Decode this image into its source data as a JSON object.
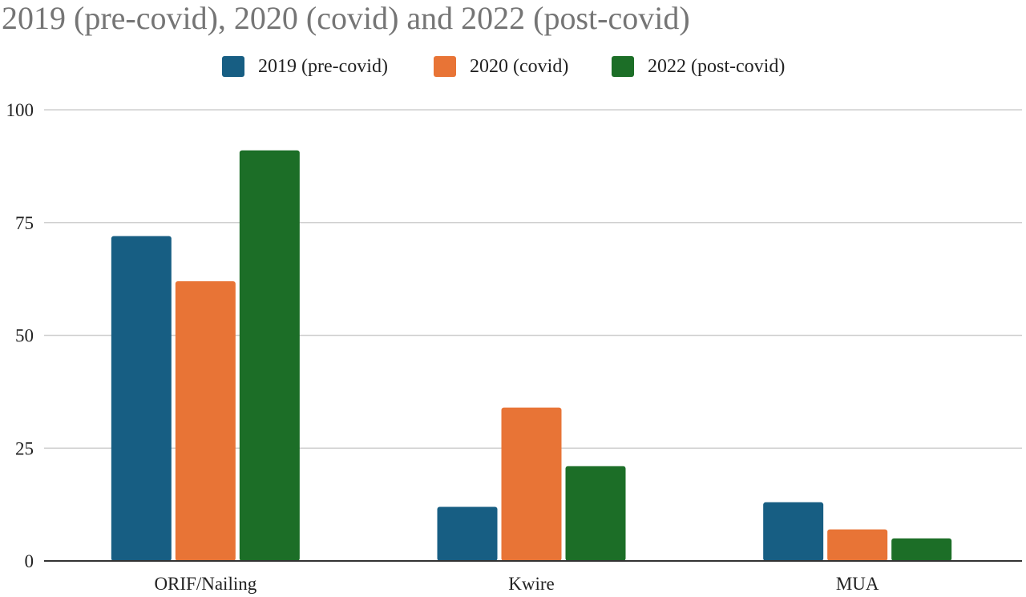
{
  "chart_data": {
    "type": "bar",
    "title": "2019 (pre-covid), 2020 (covid) and 2022 (post-covid)",
    "categories": [
      "ORIF/Nailing",
      "Kwire",
      "MUA"
    ],
    "series": [
      {
        "name": "2019 (pre-covid)",
        "values": [
          72,
          12,
          13
        ],
        "color": "#175E83"
      },
      {
        "name": "2020 (covid)",
        "values": [
          62,
          34,
          7
        ],
        "color": "#E87436"
      },
      {
        "name": "2022 (post-covid)",
        "values": [
          91,
          21,
          5
        ],
        "color": "#1C6E27"
      }
    ],
    "ylim": [
      0,
      100
    ],
    "yticks": [
      "0",
      "25",
      "50",
      "75",
      "100"
    ],
    "grid": true,
    "legend_position": "top"
  }
}
